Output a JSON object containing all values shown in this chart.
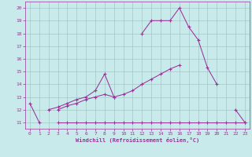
{
  "background_color": "#c8eaea",
  "line_color": "#993399",
  "xlabel": "Windchill (Refroidissement éolien,°C)",
  "ylim": [
    10.5,
    20.5
  ],
  "xlim": [
    -0.5,
    23.5
  ],
  "yticks": [
    11,
    12,
    13,
    14,
    15,
    16,
    17,
    18,
    19,
    20
  ],
  "xticks": [
    0,
    1,
    2,
    3,
    4,
    5,
    6,
    7,
    8,
    9,
    10,
    11,
    12,
    13,
    14,
    15,
    16,
    17,
    18,
    19,
    20,
    21,
    22,
    23
  ],
  "series": [
    [
      12.5,
      11.0,
      null,
      null,
      null,
      null,
      null,
      null,
      null,
      null,
      null,
      null,
      null,
      null,
      null,
      null,
      null,
      null,
      null,
      null,
      null,
      null,
      12.0,
      11.0
    ],
    [
      null,
      null,
      12.0,
      12.2,
      12.5,
      12.8,
      13.0,
      13.5,
      14.8,
      13.0,
      null,
      null,
      18.0,
      19.0,
      19.0,
      19.0,
      20.0,
      18.5,
      17.5,
      15.3,
      14.0,
      null,
      null,
      null
    ],
    [
      null,
      null,
      null,
      12.0,
      12.3,
      12.5,
      12.8,
      13.0,
      13.2,
      13.0,
      13.2,
      13.5,
      14.0,
      14.4,
      14.8,
      15.2,
      15.5,
      null,
      null,
      null,
      null,
      null,
      null,
      null
    ],
    [
      null,
      null,
      null,
      11.0,
      11.0,
      11.0,
      11.0,
      11.0,
      11.0,
      11.0,
      11.0,
      11.0,
      11.0,
      11.0,
      11.0,
      11.0,
      11.0,
      11.0,
      11.0,
      11.0,
      11.0,
      11.0,
      11.0,
      11.0
    ]
  ]
}
